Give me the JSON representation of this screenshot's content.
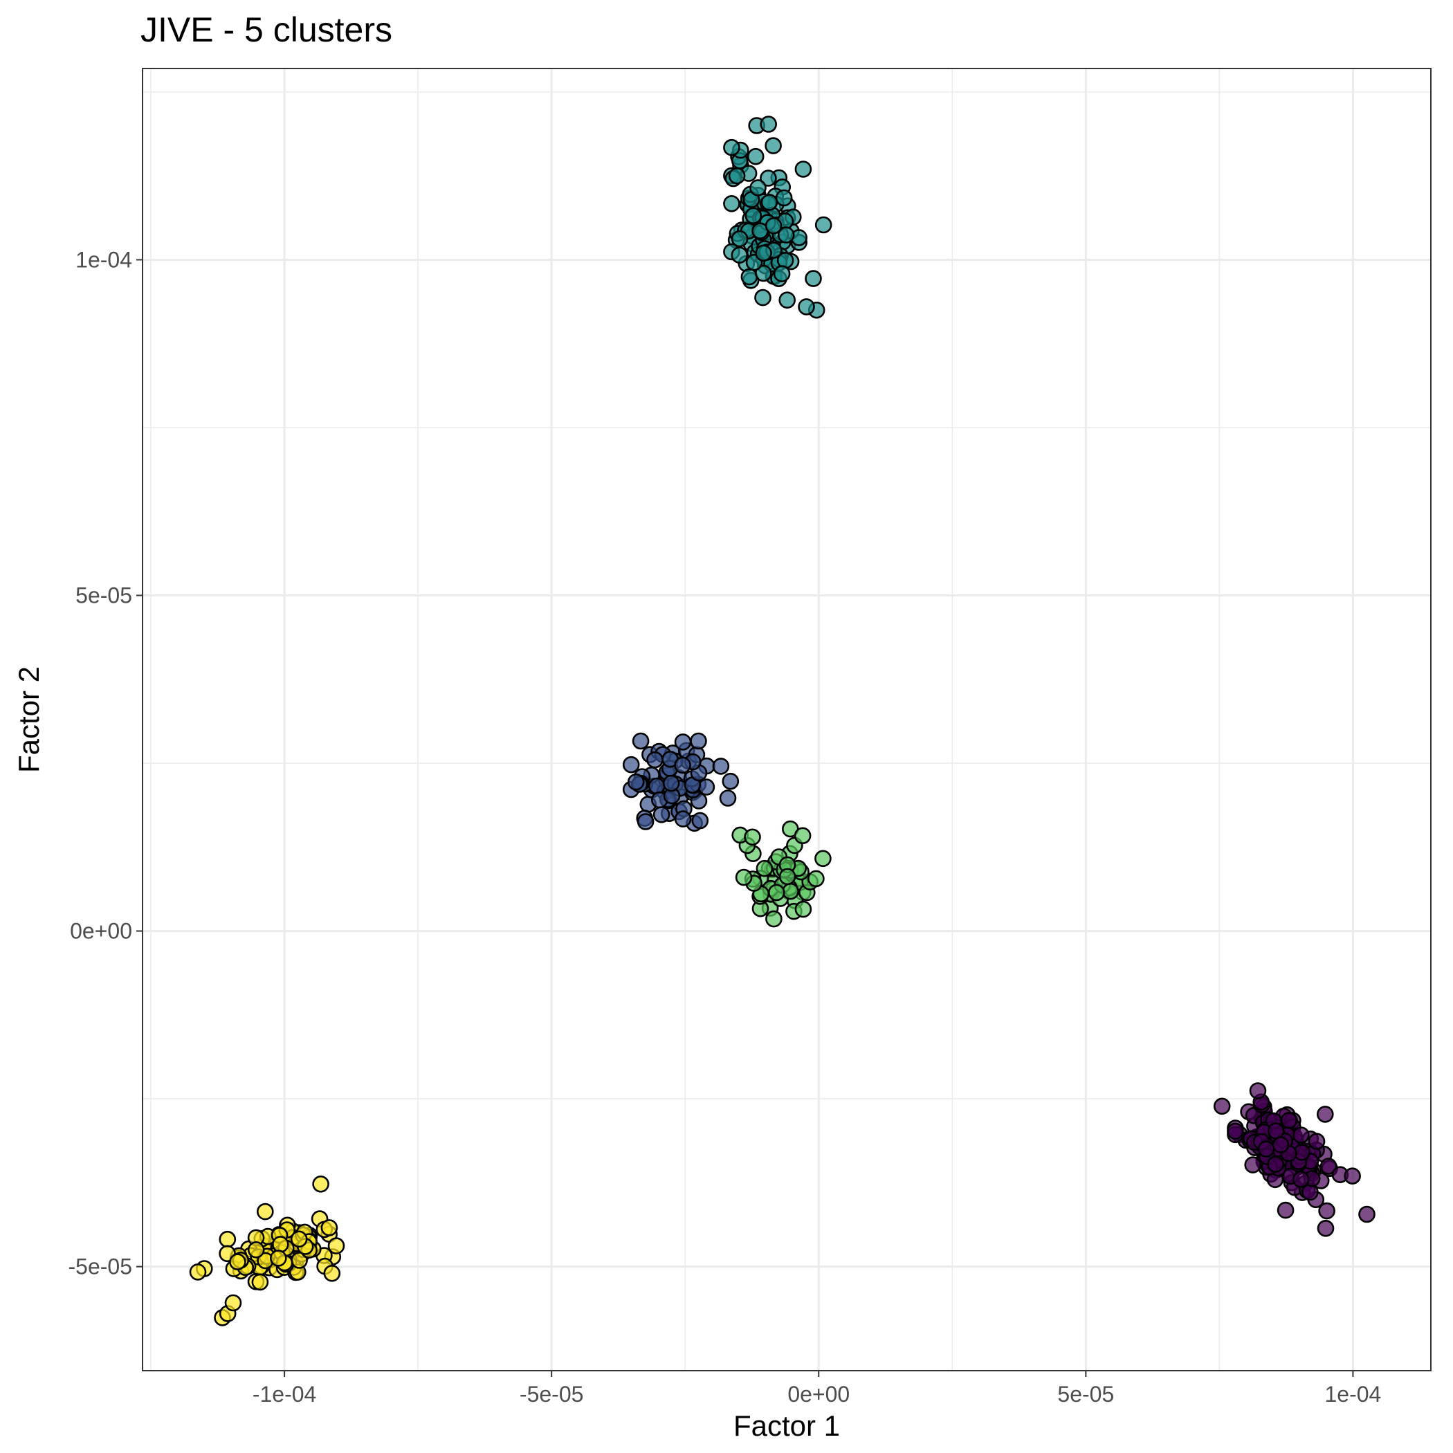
{
  "chart_data": {
    "type": "scatter",
    "title": "JIVE - 5 clusters",
    "xlabel": "Factor 1",
    "ylabel": "Factor 2",
    "xlim": [
      -0.00012656,
      0.00011458
    ],
    "ylim": [
      -6.55e-05,
      0.0001285
    ],
    "x_ticks": [
      -0.0001,
      -5e-05,
      0,
      5e-05,
      0.0001
    ],
    "x_tick_labels": [
      "-1e-04",
      "-5e-05",
      "0e+00",
      "5e-05",
      "1e-04"
    ],
    "y_ticks": [
      -5e-05,
      0,
      5e-05,
      0.0001
    ],
    "y_tick_labels": [
      "-5e-05",
      "0e+00",
      "5e-05",
      "1e-04"
    ],
    "grid": true,
    "legend": "none",
    "point_alpha": 0.7,
    "clusters": [
      {
        "color": "#440154",
        "center": [
          8.68e-05,
          -3.23e-05
        ],
        "spread": [
          4.2e-06,
          3e-06
        ],
        "rho": -0.55,
        "n": 150,
        "extra": [
          [
            0.0001026,
            -4.22e-05
          ],
          [
            9.51e-05,
            -4.17e-05
          ],
          [
            9.49e-05,
            -4.43e-05
          ],
          [
            8.74e-05,
            -4.16e-05
          ],
          [
            7.55e-05,
            -2.61e-05
          ],
          [
            9.76e-05,
            -3.63e-05
          ],
          [
            9.99e-05,
            -3.65e-05
          ],
          [
            9.48e-05,
            -2.73e-05
          ],
          [
            8.22e-05,
            -2.38e-05
          ]
        ]
      },
      {
        "color": "#3b528b",
        "center": [
          -2.67e-05,
          2.18e-05
        ],
        "spread": [
          4e-06,
          3e-06
        ],
        "rho": 0.1,
        "n": 60,
        "extra": [
          [
            -3.33e-05,
            2.83e-05
          ],
          [
            -3.42e-05,
            2.22e-05
          ],
          [
            -3.24e-05,
            1.63e-05
          ],
          [
            -1.65e-05,
            2.23e-05
          ],
          [
            -1.7e-05,
            1.98e-05
          ],
          [
            -2.25e-05,
            2.83e-05
          ],
          [
            -2.54e-05,
            1.67e-05
          ]
        ]
      },
      {
        "color": "#21908d",
        "center": [
          -1e-05,
          0.0001045
        ],
        "spread": [
          3e-06,
          5e-06
        ],
        "rho": -0.2,
        "n": 100,
        "extra": [
          [
            -1.16e-05,
            0.00012
          ],
          [
            -9.4e-06,
            0.0001202
          ],
          [
            -8.5e-06,
            0.000117
          ],
          [
            -1.53e-05,
            0.0001125
          ],
          [
            -2.9e-06,
            0.0001135
          ],
          [
            9e-07,
            0.0001052
          ],
          [
            -1e-06,
            9.72e-05
          ],
          [
            -4e-07,
            9.25e-05
          ],
          [
            -2.3e-06,
            9.3e-05
          ],
          [
            -5.9e-06,
            9.4e-05
          ]
        ]
      },
      {
        "color": "#5dc863",
        "center": [
          -7.5e-06,
          7.5e-06
        ],
        "spread": [
          2.8e-06,
          2.5e-06
        ],
        "rho": 0.0,
        "n": 45,
        "extra": [
          [
            -1.47e-05,
            1.43e-05
          ],
          [
            -1.24e-05,
            1.4e-05
          ],
          [
            -5.3e-06,
            1.52e-05
          ],
          [
            -3e-06,
            1.42e-05
          ],
          [
            8e-07,
            1.08e-05
          ],
          [
            -5e-07,
            7.8e-06
          ],
          [
            -8.4e-06,
            1.8e-06
          ],
          [
            -1.4e-05,
            8e-06
          ]
        ]
      },
      {
        "color": "#fde725",
        "center": [
          -0.0001006,
          -4.78e-05
        ],
        "spread": [
          4.8e-06,
          2e-06
        ],
        "rho": 0.45,
        "n": 100,
        "extra": [
          [
            -9.32e-05,
            -3.77e-05
          ],
          [
            -9.16e-05,
            -4.42e-05
          ],
          [
            -9.03e-05,
            -4.69e-05
          ],
          [
            -9.11e-05,
            -5.1e-05
          ],
          [
            -0.000115,
            -5.03e-05
          ],
          [
            -0.0001162,
            -5.08e-05
          ],
          [
            -0.0001116,
            -5.76e-05
          ],
          [
            -0.0001106,
            -5.7e-05
          ],
          [
            -0.0001096,
            -5.54e-05
          ],
          [
            -0.0001036,
            -4.18e-05
          ]
        ]
      }
    ]
  }
}
